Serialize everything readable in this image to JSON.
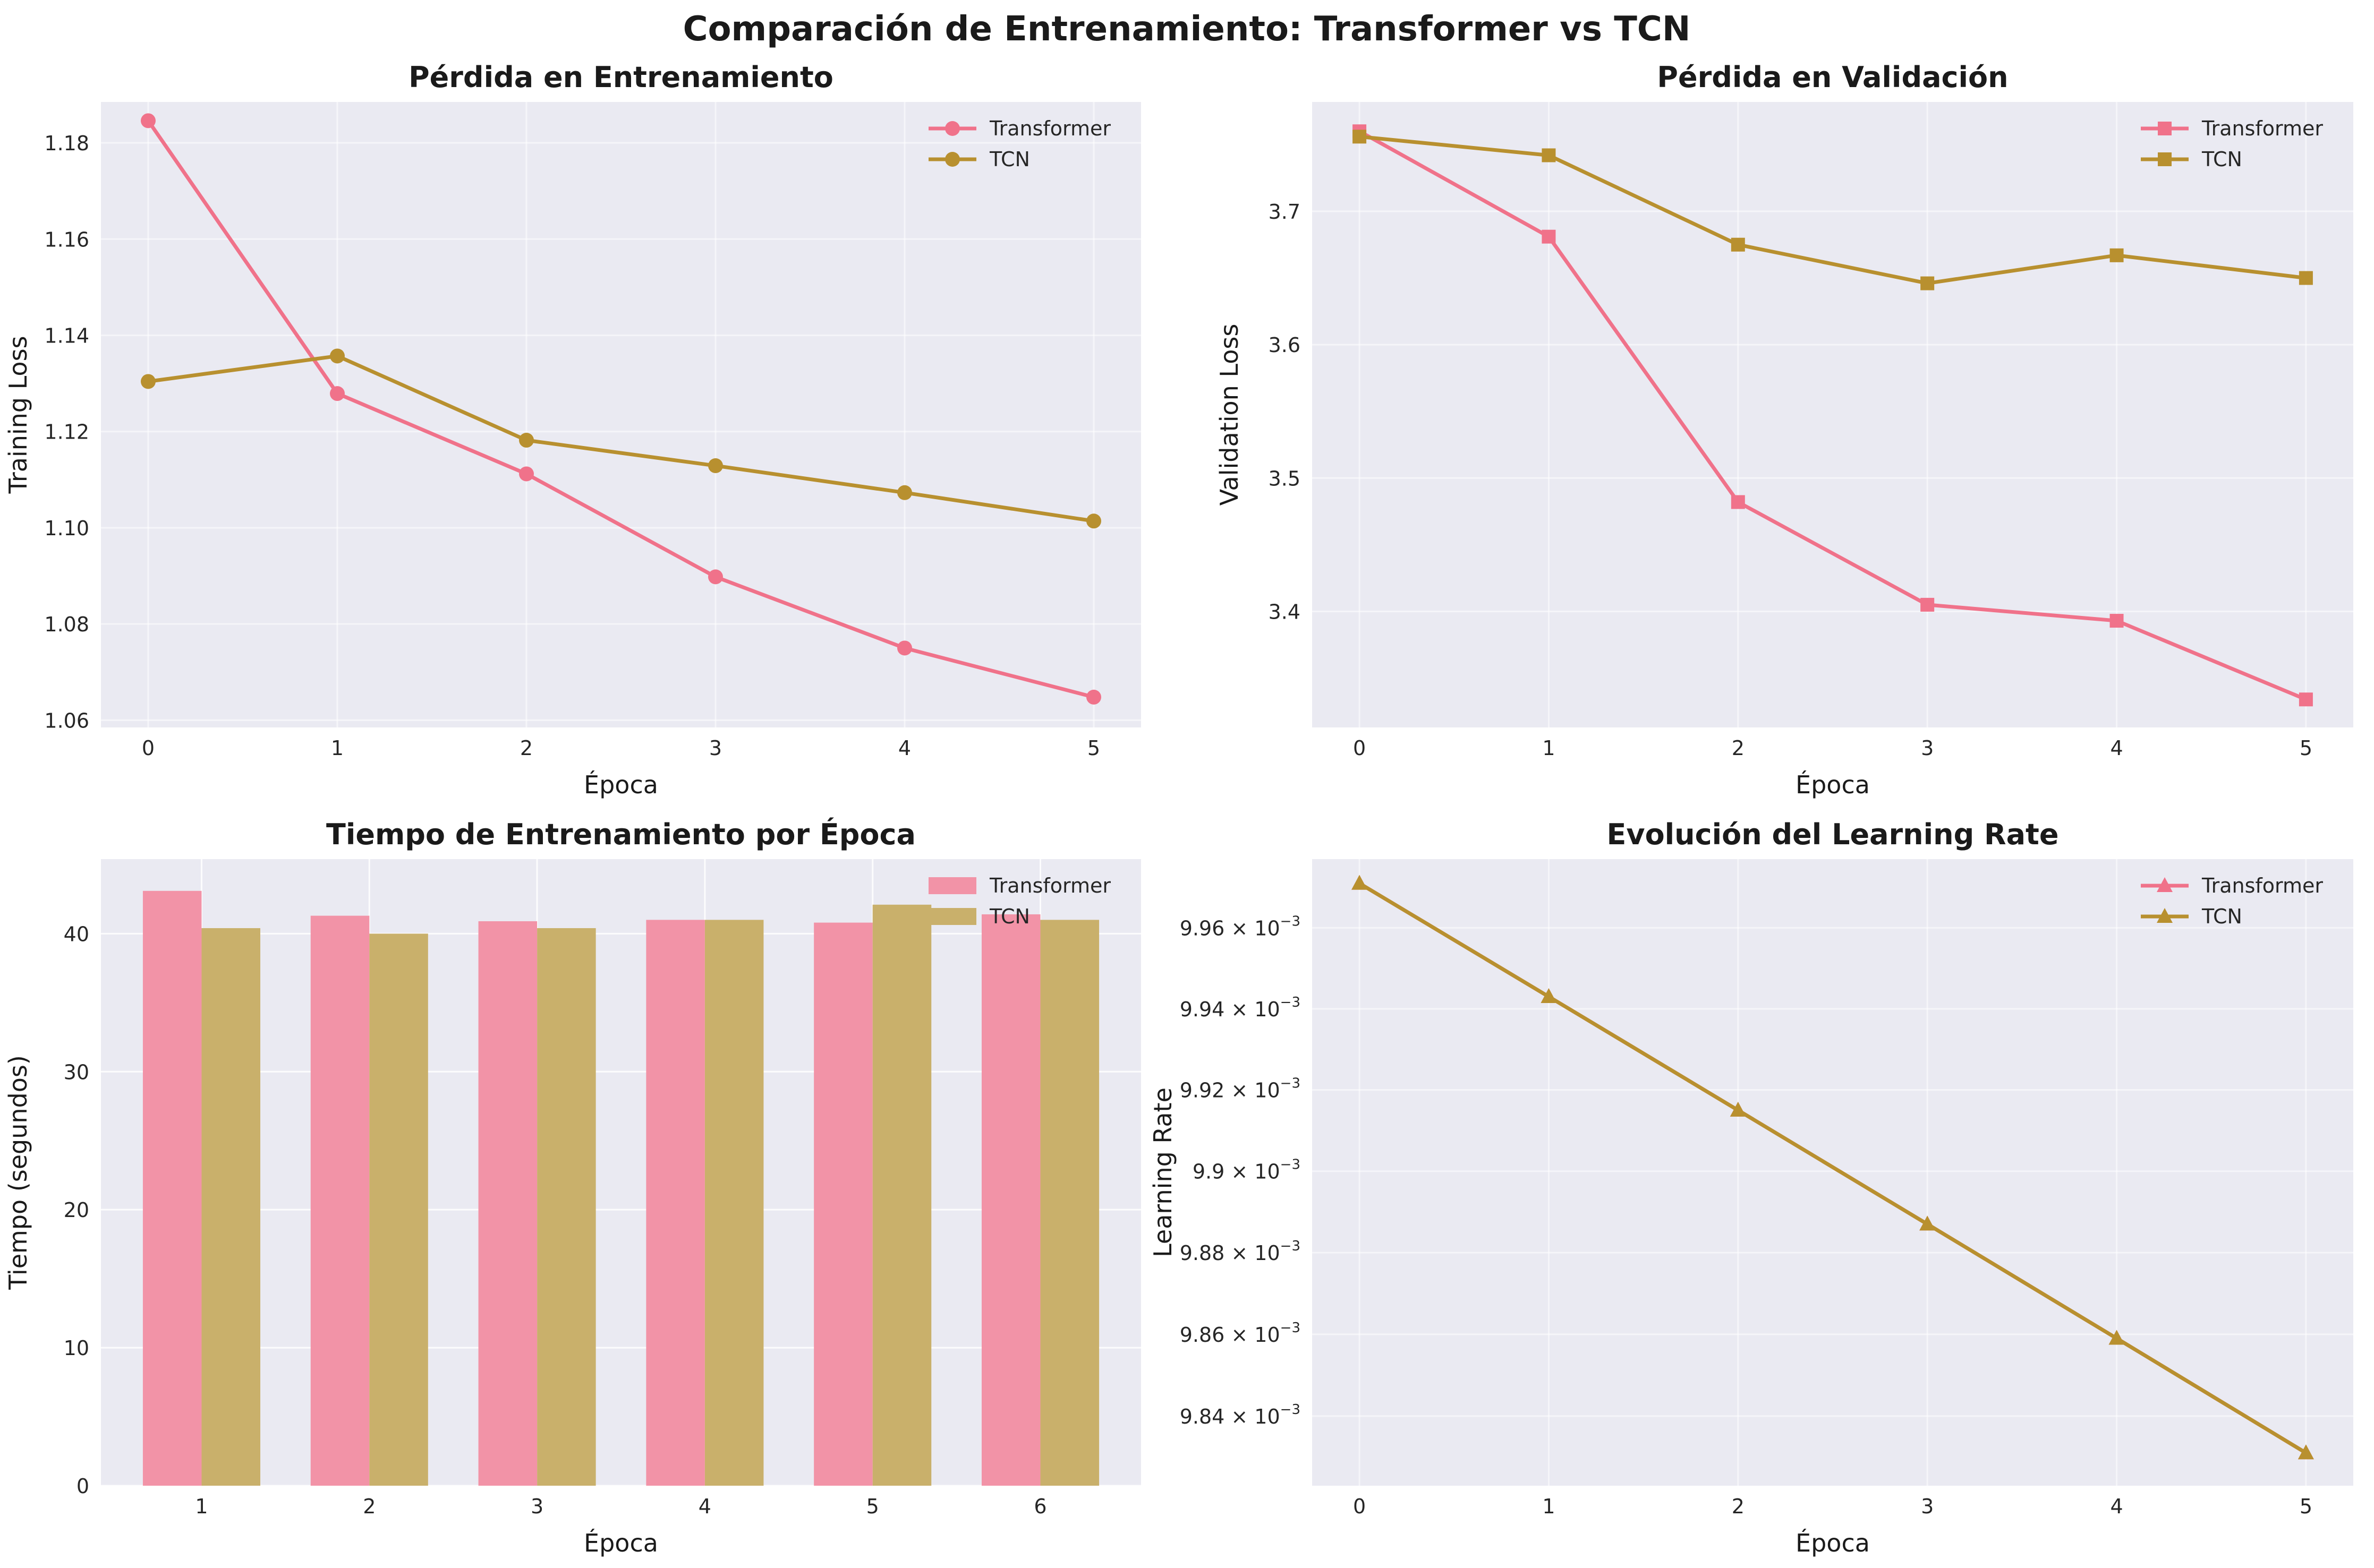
{
  "figure": {
    "title": "Comparación de Entrenamiento: Transformer vs TCN",
    "colors": {
      "transformer": "#f0728a",
      "tcn": "#b8902f",
      "transformer_bar": "#f293a7",
      "tcn_bar": "#c9b06b",
      "axes_bg": "#eaeaf2",
      "grid": "#ffffff"
    }
  },
  "chart_data": [
    {
      "id": "train",
      "type": "line",
      "title": "Pérdida en Entrenamiento",
      "xlabel": "Época",
      "ylabel": "Training Loss",
      "x": [
        0,
        1,
        2,
        3,
        4,
        5
      ],
      "xticks": [
        "0",
        "1",
        "2",
        "3",
        "4",
        "5"
      ],
      "xlim": [
        -0.25,
        5.25
      ],
      "ylim": [
        1.0585,
        1.1885
      ],
      "yticks": [
        "1.06",
        "1.08",
        "1.10",
        "1.12",
        "1.14",
        "1.16",
        "1.18"
      ],
      "ytick_values": [
        1.06,
        1.08,
        1.1,
        1.12,
        1.14,
        1.16,
        1.18
      ],
      "marker": "circle",
      "legend_position": "top-right",
      "grid": true,
      "series": [
        {
          "name": "Transformer",
          "values": [
            1.1846,
            1.1279,
            1.1112,
            1.0898,
            1.075,
            1.0648
          ]
        },
        {
          "name": "TCN",
          "values": [
            1.1304,
            1.1357,
            1.1182,
            1.1129,
            1.1073,
            1.1014
          ]
        }
      ]
    },
    {
      "id": "val",
      "type": "line",
      "title": "Pérdida en Validación",
      "xlabel": "Época",
      "ylabel": "Validation Loss",
      "x": [
        0,
        1,
        2,
        3,
        4,
        5
      ],
      "xticks": [
        "0",
        "1",
        "2",
        "3",
        "4",
        "5"
      ],
      "xlim": [
        -0.25,
        5.25
      ],
      "ylim": [
        3.313,
        3.782
      ],
      "yticks": [
        "3.4",
        "3.5",
        "3.6",
        "3.7"
      ],
      "ytick_values": [
        3.4,
        3.5,
        3.6,
        3.7
      ],
      "marker": "square",
      "legend_position": "top-right",
      "grid": true,
      "series": [
        {
          "name": "Transformer",
          "values": [
            3.76,
            3.681,
            3.482,
            3.405,
            3.393,
            3.334
          ]
        },
        {
          "name": "TCN",
          "values": [
            3.756,
            3.742,
            3.675,
            3.646,
            3.667,
            3.65
          ]
        }
      ]
    },
    {
      "id": "time",
      "type": "bar",
      "title": "Tiempo de Entrenamiento por Época",
      "xlabel": "Época",
      "ylabel": "Tiempo (segundos)",
      "categories": [
        "1",
        "2",
        "3",
        "4",
        "5",
        "6"
      ],
      "xlim": [
        0.4,
        6.6
      ],
      "ylim": [
        0,
        45.4
      ],
      "yticks": [
        "0",
        "10",
        "20",
        "30",
        "40"
      ],
      "ytick_values": [
        0,
        10,
        20,
        30,
        40
      ],
      "legend_position": "top-right",
      "grid": true,
      "series": [
        {
          "name": "Transformer",
          "values": [
            43.1,
            41.3,
            40.9,
            41.0,
            40.8,
            41.4
          ]
        },
        {
          "name": "TCN",
          "values": [
            40.4,
            40.0,
            40.4,
            41.0,
            42.1,
            41.0
          ]
        }
      ]
    },
    {
      "id": "lr",
      "type": "line",
      "title": "Evolución del Learning Rate",
      "xlabel": "Época",
      "ylabel": "Learning Rate",
      "x": [
        0,
        1,
        2,
        3,
        4,
        5
      ],
      "xticks": [
        "0",
        "1",
        "2",
        "3",
        "4",
        "5"
      ],
      "xlim": [
        -0.25,
        5.25
      ],
      "ylim": [
        0.009823,
        0.009977
      ],
      "scale": "log",
      "yticks": [
        "9.84",
        "9.86",
        "9.88",
        "9.9",
        "9.92",
        "9.94",
        "9.96"
      ],
      "ytick_values": [
        0.00984,
        0.00986,
        0.00988,
        0.0099,
        0.00992,
        0.00994,
        0.00996
      ],
      "ytick_base": "× 10",
      "ytick_exp": "−3",
      "marker": "triangle",
      "legend_position": "top-right",
      "grid": true,
      "series": [
        {
          "name": "Transformer",
          "values": [
            0.009971,
            0.009943,
            0.009915,
            0.009887,
            0.009859,
            0.009831
          ]
        },
        {
          "name": "TCN",
          "values": [
            0.009971,
            0.009943,
            0.009915,
            0.009887,
            0.009859,
            0.009831
          ]
        }
      ]
    }
  ]
}
